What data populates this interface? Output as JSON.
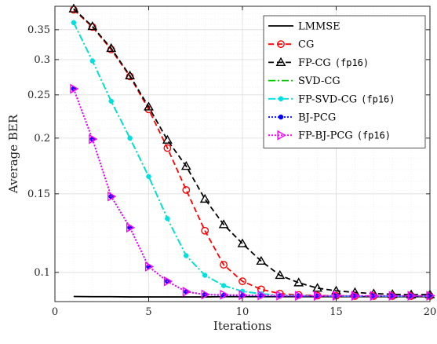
{
  "chart_data": {
    "type": "line",
    "xlabel": "Iterations",
    "ylabel": "Average BER",
    "xlim": [
      0,
      20
    ],
    "ylim": [
      0.086,
      0.395
    ],
    "yscale": "log",
    "grid": true,
    "legend_position": "top-right",
    "x_ticks": [
      "0",
      "5",
      "10",
      "15",
      "20"
    ],
    "y_ticks": [
      {
        "value": 0.1,
        "label": "0.1"
      },
      {
        "value": 0.15,
        "label": "0.15"
      },
      {
        "value": 0.2,
        "label": "0.2"
      },
      {
        "value": 0.25,
        "label": "0.25"
      },
      {
        "value": 0.3,
        "label": "0.3"
      },
      {
        "value": 0.35,
        "label": "0.35"
      }
    ],
    "x": [
      1,
      2,
      3,
      4,
      5,
      6,
      7,
      8,
      9,
      10,
      11,
      12,
      13,
      14,
      15,
      16,
      17,
      18,
      19,
      20
    ],
    "series": [
      {
        "name": "LMMSE",
        "suffix": "",
        "color": "#000000",
        "dash": "solid",
        "marker": "none",
        "values": [
          0.0883,
          0.0882,
          0.0882,
          0.0881,
          0.0881,
          0.0881,
          0.0881,
          0.0881,
          0.0882,
          0.0882,
          0.0882,
          0.0882,
          0.0882,
          0.0882,
          0.0882,
          0.0882,
          0.0882,
          0.0882,
          0.0882,
          0.0882
        ]
      },
      {
        "name": "CG",
        "suffix": "",
        "color": "#ff0000",
        "dash": "dashed",
        "marker": "circle",
        "values": [
          0.388,
          0.355,
          0.316,
          0.275,
          0.232,
          0.19,
          0.153,
          0.124,
          0.104,
          0.0955,
          0.0916,
          0.0896,
          0.089,
          0.0887,
          0.0886,
          0.0885,
          0.0885,
          0.0885,
          0.0885,
          0.0885
        ]
      },
      {
        "name": "FP-CG",
        "suffix": "(fp16)",
        "color": "#000000",
        "dash": "dashed",
        "marker": "triangle",
        "values": [
          0.39,
          0.356,
          0.318,
          0.276,
          0.235,
          0.198,
          0.173,
          0.146,
          0.128,
          0.116,
          0.106,
          0.0985,
          0.0948,
          0.0922,
          0.0909,
          0.0902,
          0.0896,
          0.0893,
          0.0891,
          0.0892
        ]
      },
      {
        "name": "SVD-CG",
        "suffix": "",
        "color": "#00cc00",
        "dash": "dashdot",
        "marker": "none",
        "values": [
          0.363,
          0.298,
          0.242,
          0.2,
          0.164,
          0.132,
          0.109,
          0.0985,
          0.0934,
          0.0907,
          0.0895,
          0.0889,
          0.0887,
          0.0886,
          0.0885,
          0.0885,
          0.0885,
          0.0885,
          0.0885,
          0.0885
        ]
      },
      {
        "name": "FP-SVD-CG",
        "suffix": "(fp16)",
        "color": "#00e0e0",
        "dash": "dashdot",
        "marker": "dot",
        "values": [
          0.363,
          0.298,
          0.242,
          0.2,
          0.164,
          0.132,
          0.109,
          0.0985,
          0.0934,
          0.0907,
          0.0895,
          0.0889,
          0.0887,
          0.0886,
          0.0885,
          0.0885,
          0.0885,
          0.0885,
          0.0885,
          0.0885
        ]
      },
      {
        "name": "BJ-PCG",
        "suffix": "",
        "color": "#0000ff",
        "dash": "dotted",
        "marker": "dot",
        "values": [
          0.258,
          0.199,
          0.148,
          0.126,
          0.103,
          0.0955,
          0.0905,
          0.0892,
          0.0888,
          0.0887,
          0.0886,
          0.0885,
          0.0885,
          0.0885,
          0.0885,
          0.0885,
          0.0885,
          0.0885,
          0.0885,
          0.0885
        ]
      },
      {
        "name": "FP-BJ-PCG",
        "suffix": "(fp16)",
        "color": "#ff00ff",
        "dash": "dotted",
        "marker": "rtriangle",
        "values": [
          0.258,
          0.199,
          0.148,
          0.126,
          0.103,
          0.0955,
          0.0905,
          0.0892,
          0.0891,
          0.0889,
          0.0888,
          0.0887,
          0.0886,
          0.0886,
          0.0886,
          0.0886,
          0.0886,
          0.0886,
          0.0886,
          0.0886
        ]
      }
    ]
  }
}
